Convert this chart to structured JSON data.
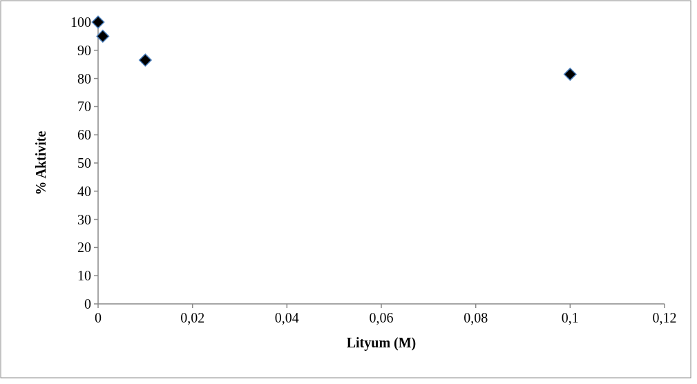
{
  "chart_data": {
    "type": "scatter",
    "xlabel": "Lityum (M)",
    "ylabel": "% Aktivite",
    "x": [
      0,
      0.001,
      0.01,
      0.1
    ],
    "values": [
      100,
      95,
      86.5,
      81.5
    ],
    "color": "#000000",
    "marker": "diamond",
    "xlim": [
      0,
      0.12
    ],
    "xticks": [
      {
        "value": 0,
        "label": "0"
      },
      {
        "value": 0.02,
        "label": "0,02"
      },
      {
        "value": 0.04,
        "label": "0,04"
      },
      {
        "value": 0.06,
        "label": "0,06"
      },
      {
        "value": 0.08,
        "label": "0,08"
      },
      {
        "value": 0.1,
        "label": "0,1"
      },
      {
        "value": 0.12,
        "label": "0,12"
      }
    ],
    "ylim": [
      0,
      100
    ],
    "yticks": [
      0,
      10,
      20,
      30,
      40,
      50,
      60,
      70,
      80,
      90,
      100
    ]
  }
}
